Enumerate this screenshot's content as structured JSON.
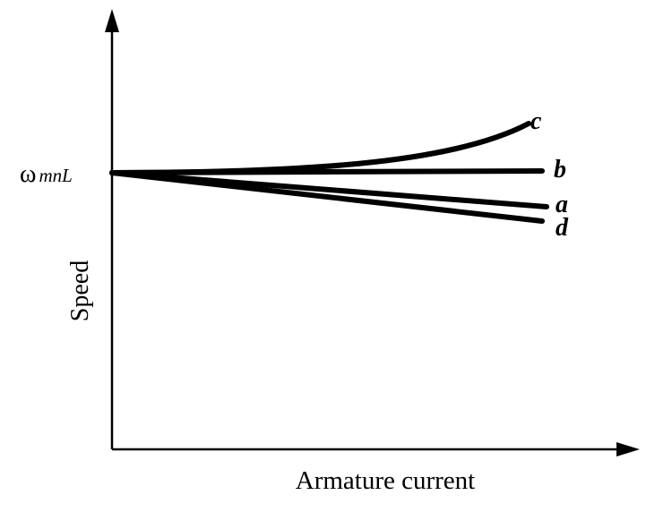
{
  "axes": {
    "x_label": "Armature current",
    "y_label": "Speed",
    "y_marker": {
      "symbol": "ω",
      "subscript": "mnL"
    }
  },
  "curves": [
    {
      "label": "c"
    },
    {
      "label": "b"
    },
    {
      "label": "a"
    },
    {
      "label": "d"
    }
  ]
}
